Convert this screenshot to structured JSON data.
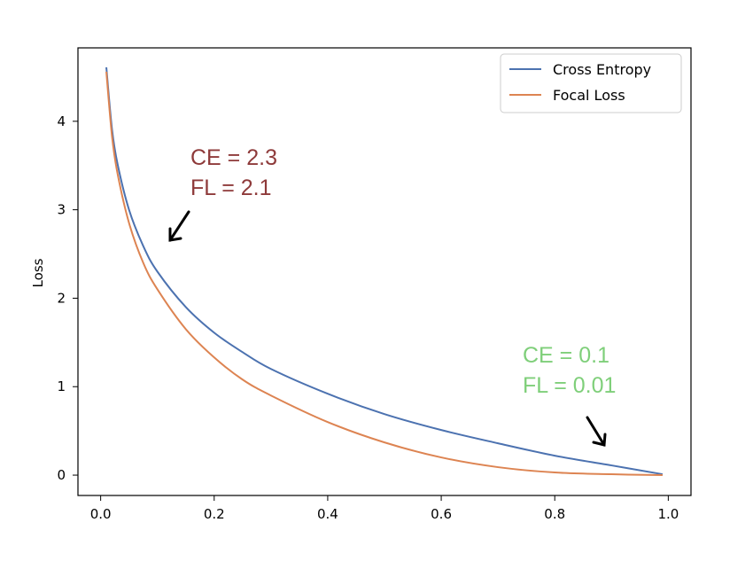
{
  "chart_data": {
    "type": "line",
    "title": "",
    "xlabel": "",
    "ylabel": "Loss",
    "xlim": [
      -0.04,
      1.04
    ],
    "ylim": [
      -0.23,
      4.83
    ],
    "xticks": [
      "0.0",
      "0.2",
      "0.4",
      "0.6",
      "0.8",
      "1.0"
    ],
    "yticks": [
      "0",
      "1",
      "2",
      "3",
      "4"
    ],
    "legend_position": "top-right",
    "series": [
      {
        "name": "Cross Entropy",
        "color": "#4c72b0",
        "x": [
          0.01,
          0.02,
          0.03,
          0.05,
          0.075,
          0.1,
          0.15,
          0.2,
          0.25,
          0.3,
          0.4,
          0.5,
          0.6,
          0.7,
          0.8,
          0.9,
          0.99
        ],
        "y": [
          4.61,
          3.91,
          3.51,
          3.0,
          2.59,
          2.3,
          1.9,
          1.61,
          1.39,
          1.2,
          0.92,
          0.69,
          0.51,
          0.36,
          0.22,
          0.11,
          0.01
        ]
      },
      {
        "name": "Focal Loss",
        "color": "#dd8452",
        "x": [
          0.01,
          0.02,
          0.03,
          0.05,
          0.075,
          0.1,
          0.15,
          0.2,
          0.25,
          0.3,
          0.4,
          0.5,
          0.6,
          0.7,
          0.8,
          0.9,
          0.99
        ],
        "y": [
          4.56,
          3.83,
          3.4,
          2.85,
          2.4,
          2.1,
          1.65,
          1.33,
          1.08,
          0.9,
          0.6,
          0.37,
          0.2,
          0.09,
          0.03,
          0.01,
          0.0
        ]
      }
    ],
    "annotations": [
      {
        "lines": [
          "CE = 2.3",
          "FL = 2.1"
        ],
        "color": "#8e3a3a"
      },
      {
        "lines": [
          "CE = 0.1",
          "FL = 0.01"
        ],
        "color": "#7fcf7a"
      }
    ]
  }
}
